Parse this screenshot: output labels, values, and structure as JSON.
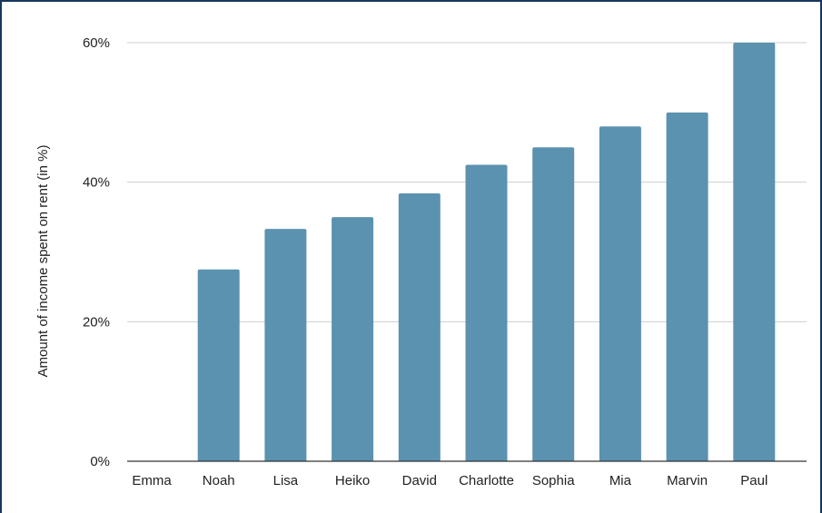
{
  "chart_data": {
    "type": "bar",
    "title": "",
    "xlabel": "",
    "ylabel": "Amount of income spent on rent (in %)",
    "categories": [
      "Emma",
      "Noah",
      "Lisa",
      "Heiko",
      "David",
      "Charlotte",
      "Sophia",
      "Mia",
      "Marvin",
      "Paul"
    ],
    "values": [
      0,
      27.5,
      33.3,
      35,
      38.4,
      42.5,
      45,
      48,
      50,
      60
    ],
    "ylim": [
      0,
      60
    ],
    "yticks": [
      0,
      20,
      40,
      60
    ],
    "ytick_labels": [
      "0%",
      "20%",
      "40%",
      "60%"
    ],
    "grid": true,
    "legend": "none",
    "bar_color": "#5b92b0",
    "grid_color": "#cfcfcf",
    "axis_color": "#333333",
    "border_color": "#17375e"
  }
}
